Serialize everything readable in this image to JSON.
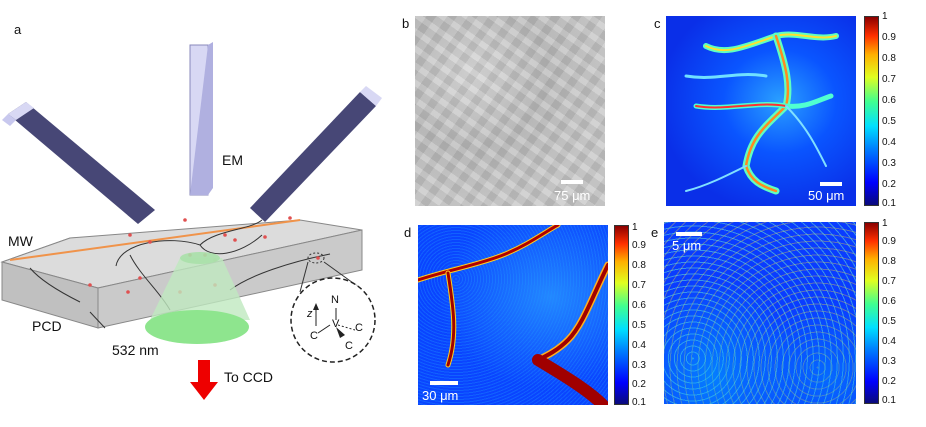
{
  "panel_letters": {
    "a": "a",
    "b": "b",
    "c": "c",
    "d": "d",
    "e": "e"
  },
  "schematic": {
    "em_label": "EM",
    "mw_label": "MW",
    "pcd_label": "PCD",
    "laser_label": "532 nm",
    "ccd_label": "To CCD",
    "nv_atoms": {
      "n": "N",
      "v": "V",
      "c1": "C",
      "c2": "C",
      "c3": "C",
      "z": "z"
    }
  },
  "scale_bars": {
    "b": "75 μm",
    "c": "50 μm",
    "d": "30 μm",
    "e": "5 μm"
  },
  "colorbar_c": {
    "ticks": [
      "1",
      "0.9",
      "0.8",
      "0.7",
      "0.6",
      "0.5",
      "0.4",
      "0.3",
      "0.2",
      "0.1"
    ]
  },
  "colorbar_d": {
    "ticks": [
      "1",
      "0.9",
      "0.8",
      "0.7",
      "0.6",
      "0.5",
      "0.4",
      "0.3",
      "0.2",
      "0.1"
    ]
  },
  "colorbar_e": {
    "ticks": [
      "1",
      "0.9",
      "0.8",
      "0.7",
      "0.6",
      "0.5",
      "0.4",
      "0.3",
      "0.2",
      "0.1"
    ]
  },
  "colors": {
    "fluor_low": "#0000ff",
    "fluor_high": "#ff0000",
    "laser": "#8ee58e",
    "arrow": "#ee0000"
  }
}
